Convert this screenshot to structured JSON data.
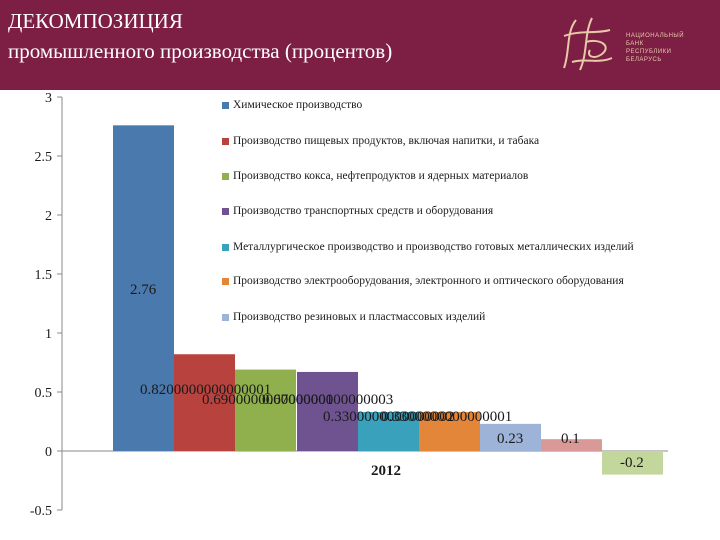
{
  "header": {
    "title_line1": "ДЕКОМПОЗИЦИЯ",
    "title_line2": "промышленного производства (процентов)",
    "logo_lines": [
      "НАЦИОНАЛЬНЫЙ",
      "БАНК",
      "РЕСПУБЛИКИ",
      "БЕЛАРУСЬ"
    ]
  },
  "colors": {
    "header_bg": "#7d1f45",
    "logo_gold": "#e7c9a8"
  },
  "chart_data": {
    "type": "bar",
    "categories": [
      "2012"
    ],
    "ylim": [
      -0.5,
      3
    ],
    "yticks": [
      "3",
      "2.5",
      "2",
      "1.5",
      "1",
      "0.5",
      "0",
      "-0.5"
    ],
    "grid": false,
    "legend_position": "right",
    "series": [
      {
        "name": "Химическое производство",
        "values": [
          2.76
        ],
        "color": "#4a79ad",
        "label": "2.76"
      },
      {
        "name": "Производство пищевых продуктов, включая напитки, и табака",
        "values": [
          0.82
        ],
        "color": "#b8423e",
        "label": "0.8200000000000001"
      },
      {
        "name": "Производство кокса, нефтепродуктов и ядерных материалов",
        "values": [
          0.69
        ],
        "color": "#8fb04c",
        "label": "0.6900000000000001"
      },
      {
        "name": "Производство транспортных средств и оборудования",
        "values": [
          0.67
        ],
        "color": "#6f5390",
        "label": "0.6700000000000003"
      },
      {
        "name": "Металлургическое производство и производство готовых металлических изделий",
        "values": [
          0.33
        ],
        "color": "#3aa1bd",
        "label": "0.3300000000000002"
      },
      {
        "name": "Производство электрооборудования, электронного и оптического оборудования",
        "values": [
          0.33
        ],
        "color": "#e3863a",
        "label": "0.3300000000000001"
      },
      {
        "name": "Производство резиновых и пластмассовых изделий",
        "values": [
          0.23
        ],
        "color": "#9db4d8",
        "label": "0.23"
      },
      {
        "name": "",
        "values": [
          0.1
        ],
        "color": "#d99996",
        "label": "0.1"
      },
      {
        "name": "",
        "values": [
          -0.2
        ],
        "color": "#c3d69b",
        "label": "-0.2"
      }
    ]
  }
}
